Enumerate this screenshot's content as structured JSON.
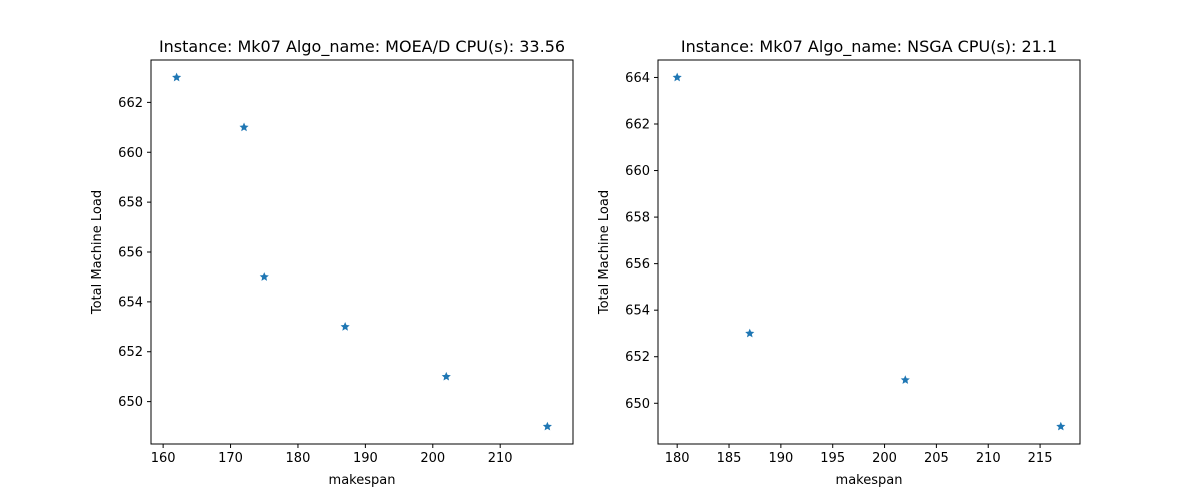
{
  "chart_data": [
    {
      "type": "scatter",
      "title": "Instance: Mk07 Algo_name: MOEA/D CPU(s): 33.56",
      "xlabel": "makespan",
      "ylabel": "Total Machine Load",
      "xlim": [
        158.2,
        220.8
      ],
      "ylim": [
        648.3,
        663.7
      ],
      "xticks": [
        160,
        170,
        180,
        190,
        200,
        210
      ],
      "yticks": [
        650,
        652,
        654,
        656,
        658,
        660,
        662
      ],
      "marker": "star",
      "color": "#1f77b4",
      "grid": false,
      "points": [
        {
          "x": 162,
          "y": 663
        },
        {
          "x": 172,
          "y": 661
        },
        {
          "x": 175,
          "y": 655
        },
        {
          "x": 187,
          "y": 653
        },
        {
          "x": 202,
          "y": 651
        },
        {
          "x": 217,
          "y": 649
        }
      ]
    },
    {
      "type": "scatter",
      "title": "Instance: Mk07 Algo_name: NSGA CPU(s): 21.1",
      "xlabel": "makespan",
      "ylabel": "Total Machine Load",
      "xlim": [
        178.15,
        218.85
      ],
      "ylim": [
        648.25,
        664.75
      ],
      "xticks": [
        180,
        185,
        190,
        195,
        200,
        205,
        210,
        215
      ],
      "yticks": [
        650,
        652,
        654,
        656,
        658,
        660,
        662,
        664
      ],
      "marker": "star",
      "color": "#1f77b4",
      "grid": false,
      "points": [
        {
          "x": 180,
          "y": 664
        },
        {
          "x": 187,
          "y": 653
        },
        {
          "x": 202,
          "y": 651
        },
        {
          "x": 217,
          "y": 649
        }
      ]
    }
  ]
}
